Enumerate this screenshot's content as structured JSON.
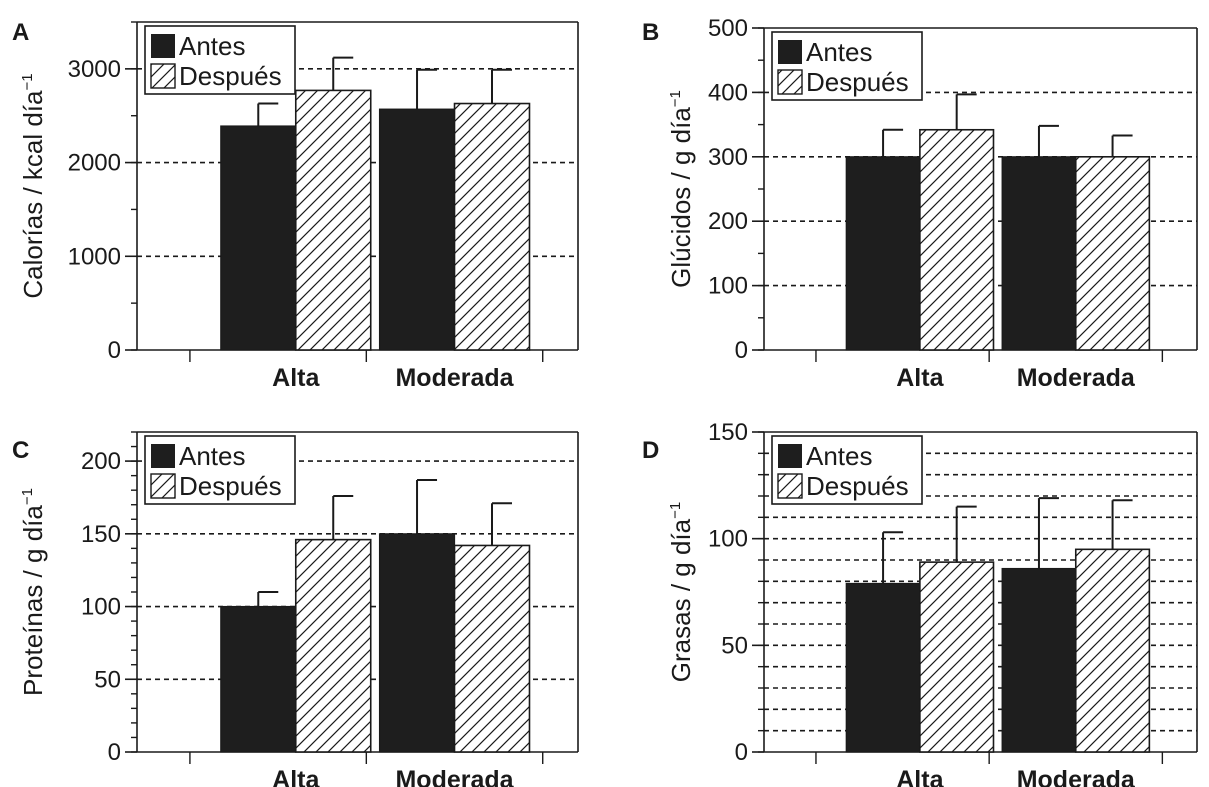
{
  "figure": {
    "legend_labels": [
      "Antes",
      "Después"
    ],
    "series_styles": {
      "Antes": "solid",
      "Después": "hatched"
    },
    "colors": {
      "antes_fill": "#1e1e1e",
      "despues_fill": "#ffffff",
      "axis": "#1a1a1a",
      "hatch": "#1a1a1a"
    },
    "legend_position": "top-left"
  },
  "chart_data": [
    {
      "type": "bar",
      "panel": "A",
      "categories": [
        "Alta",
        "Moderada"
      ],
      "ylabel": "Calorías / kcal día",
      "ylabel_exponent": "−1",
      "ylim": [
        0,
        3000
      ],
      "yticks": [
        0,
        1000,
        2000,
        3000
      ],
      "grid": "dashed at major ticks",
      "series": [
        {
          "name": "Antes",
          "values": [
            2390,
            2570
          ],
          "errors": [
            240,
            420
          ]
        },
        {
          "name": "Después",
          "values": [
            2770,
            2630
          ],
          "errors": [
            350,
            360
          ]
        }
      ]
    },
    {
      "type": "bar",
      "panel": "B",
      "categories": [
        "Alta",
        "Moderada"
      ],
      "ylabel": "Glúcidos / g día",
      "ylabel_exponent": "−1",
      "ylim": [
        0,
        500
      ],
      "yticks": [
        0,
        100,
        200,
        300,
        400,
        500
      ],
      "grid": "dashed at major ticks",
      "series": [
        {
          "name": "Antes",
          "values": [
            300,
            300
          ],
          "errors": [
            42,
            48
          ]
        },
        {
          "name": "Después",
          "values": [
            342,
            300
          ],
          "errors": [
            55,
            33
          ]
        }
      ]
    },
    {
      "type": "bar",
      "panel": "C",
      "categories": [
        "Alta",
        "Moderada"
      ],
      "ylabel": "Proteínas / g día",
      "ylabel_exponent": "−1",
      "ylim": [
        0,
        200
      ],
      "yticks": [
        0,
        50,
        100,
        150,
        200
      ],
      "grid": "dashed at major ticks",
      "series": [
        {
          "name": "Antes",
          "values": [
            100,
            150
          ],
          "errors": [
            10,
            37
          ]
        },
        {
          "name": "Después",
          "values": [
            146,
            142
          ],
          "errors": [
            30,
            29
          ]
        }
      ]
    },
    {
      "type": "bar",
      "panel": "D",
      "categories": [
        "Alta",
        "Moderada"
      ],
      "ylabel": "Grasas / g día",
      "ylabel_exponent": "−1",
      "ylim": [
        0,
        150
      ],
      "yticks": [
        0,
        50,
        100,
        150
      ],
      "grid": "dashed every 10",
      "series": [
        {
          "name": "Antes",
          "values": [
            79,
            86
          ],
          "errors": [
            24,
            33
          ]
        },
        {
          "name": "Después",
          "values": [
            89,
            95
          ],
          "errors": [
            26,
            23
          ]
        }
      ]
    }
  ]
}
